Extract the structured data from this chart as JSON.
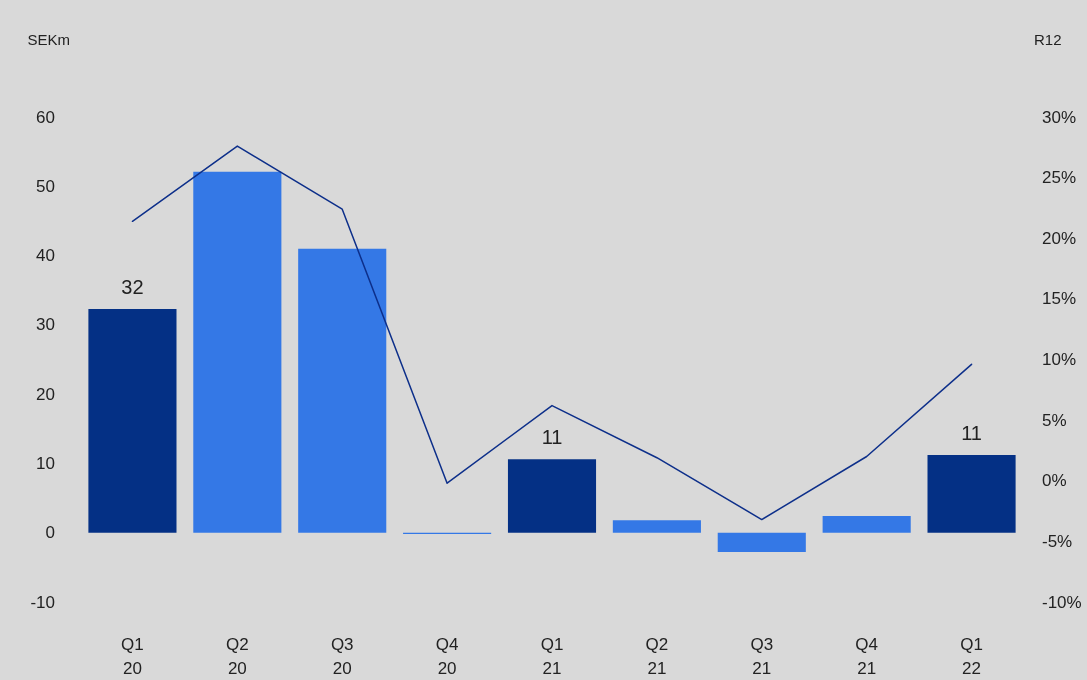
{
  "chart_data": {
    "type": "bar",
    "ylabel": "SEKm",
    "y2label": "R12",
    "categories": [
      "Q1\n20",
      "Q2\n20",
      "Q3\n20",
      "Q4\n20",
      "Q1\n21",
      "Q2\n21",
      "Q3\n21",
      "Q4\n21",
      "Q1\n22"
    ],
    "series": [
      {
        "values": [
          32.3,
          52.1,
          41.0,
          -0.2,
          10.6,
          1.8,
          -2.8,
          2.4,
          11.2
        ],
        "colors": [
          "#043085",
          "#3478e6",
          "#3478e6",
          "#3478e6",
          "#043085",
          "#3478e6",
          "#3478e6",
          "#3478e6",
          "#043085"
        ],
        "value_labels": [
          "32",
          null,
          null,
          null,
          "11",
          null,
          null,
          null,
          "11"
        ]
      },
      {
        "type": "line",
        "axis": "y2",
        "color": "#0d2f8a",
        "values": [
          21.4,
          27.6,
          22.4,
          -0.2,
          6.2,
          1.9,
          -3.2,
          2.0,
          9.6
        ],
        "marker": "none"
      }
    ],
    "ylim": [
      -10,
      60
    ],
    "yticks": [
      -10,
      0,
      10,
      20,
      30,
      40,
      50,
      60
    ],
    "y2lim": [
      -10,
      30
    ],
    "y2ticks": [
      {
        "value": -10,
        "label": "-10%"
      },
      {
        "value": -5,
        "label": "-5%"
      },
      {
        "value": 0,
        "label": "0%"
      },
      {
        "value": 5,
        "label": "5%"
      },
      {
        "value": 10,
        "label": "10%"
      },
      {
        "value": 15,
        "label": "15%"
      },
      {
        "value": 20,
        "label": "20%"
      },
      {
        "value": 25,
        "label": "25%"
      },
      {
        "value": 30,
        "label": "30%"
      }
    ],
    "grid": false
  }
}
